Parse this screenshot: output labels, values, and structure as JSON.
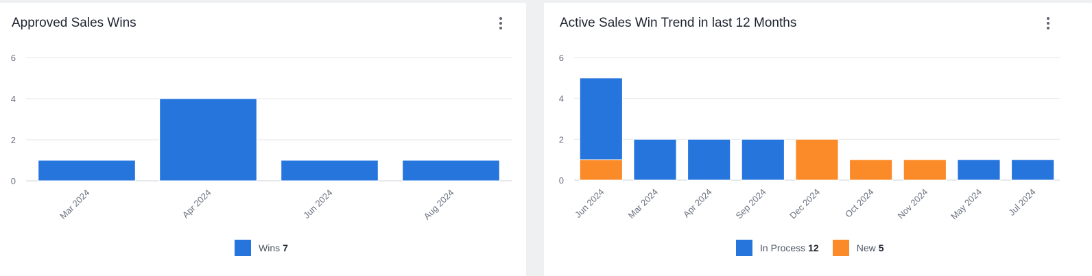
{
  "colors": {
    "blue": "#2675dd",
    "orange": "#fb8a29",
    "grid": "#e3e5e8",
    "axis_text": "#6a7180"
  },
  "chart_data": [
    {
      "type": "bar",
      "title": "Approved Sales Wins",
      "categories": [
        "Mar 2024",
        "Apr 2024",
        "Jun 2024",
        "Aug 2024"
      ],
      "series": [
        {
          "name": "Wins",
          "values": [
            1,
            4,
            1,
            1
          ],
          "color": "#2675dd"
        }
      ],
      "yticks": [
        "0",
        "2",
        "4",
        "6"
      ],
      "ylim": [
        0,
        6
      ],
      "grid": true,
      "legend": {
        "position": "bottom",
        "items": [
          {
            "label": "Wins",
            "count": "7",
            "color": "#2675dd"
          }
        ]
      }
    },
    {
      "type": "bar",
      "stacked": true,
      "title": "Active Sales Win Trend in last 12 Months",
      "categories": [
        "Jun 2024",
        "Mar 2024",
        "Apr 2024",
        "Sep 2024",
        "Dec 2024",
        "Oct 2024",
        "Nov 2024",
        "May 2024",
        "Jul 2024"
      ],
      "series": [
        {
          "name": "New",
          "values": [
            1,
            0,
            0,
            0,
            2,
            1,
            1,
            0,
            0
          ],
          "color": "#fb8a29"
        },
        {
          "name": "In Process",
          "values": [
            4,
            2,
            2,
            2,
            0,
            0,
            0,
            1,
            1
          ],
          "color": "#2675dd"
        }
      ],
      "yticks": [
        "0",
        "2",
        "4",
        "6"
      ],
      "ylim": [
        0,
        6
      ],
      "grid": true,
      "legend": {
        "position": "bottom",
        "items": [
          {
            "label": "In Process",
            "count": "12",
            "color": "#2675dd"
          },
          {
            "label": "New",
            "count": "5",
            "color": "#fb8a29"
          }
        ]
      }
    }
  ]
}
